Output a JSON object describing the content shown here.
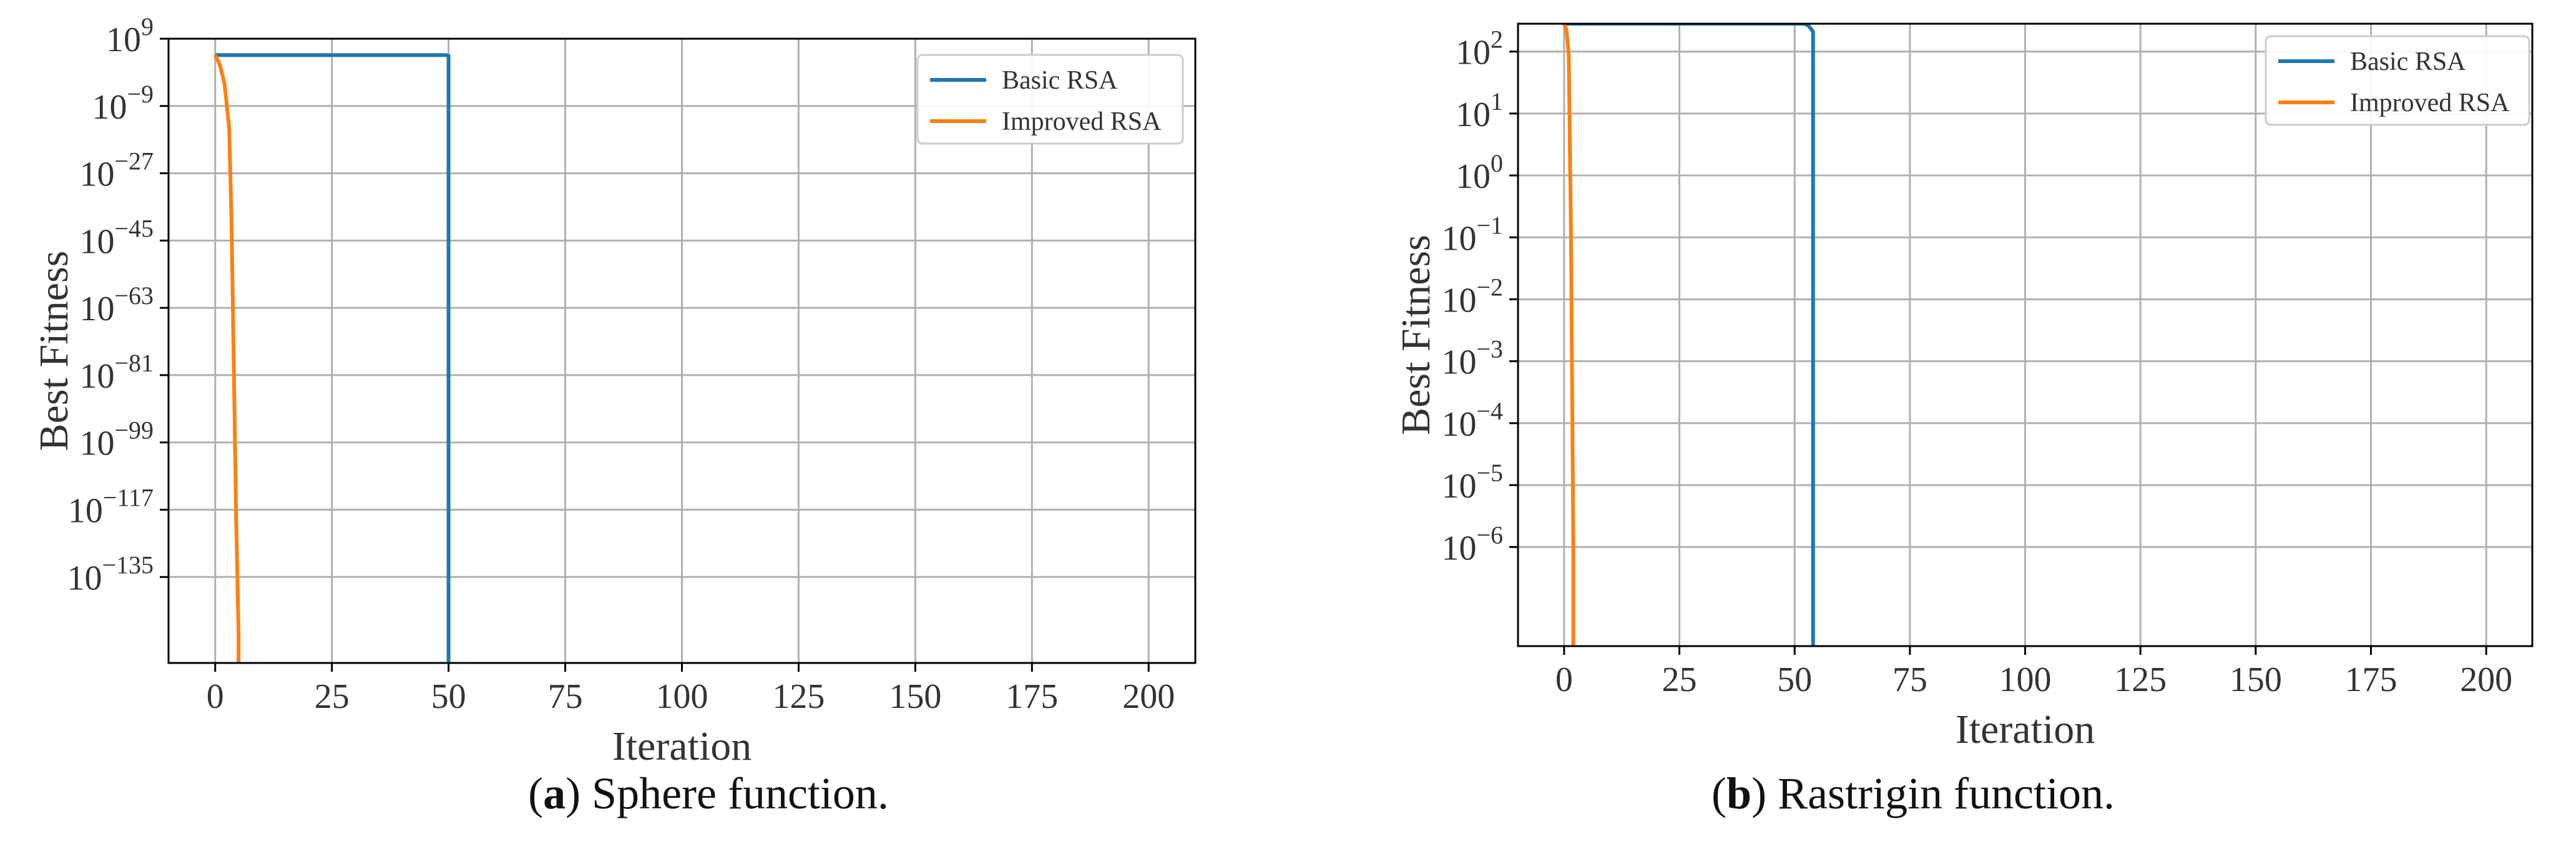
{
  "colors": {
    "basic": "#1f77b4",
    "improved": "#ff7f0e",
    "grid": "#b0b0b0"
  },
  "chart_data": [
    {
      "type": "line",
      "panel_letter": "a",
      "caption_text": ") Sphere function.",
      "xlabel": "Iteration",
      "ylabel": "Best Fitness",
      "yscale": "log",
      "xlim": [
        -10,
        210
      ],
      "ylim_exp": [
        -158,
        9
      ],
      "xticks": [
        0,
        25,
        50,
        75,
        100,
        125,
        150,
        175,
        200
      ],
      "yticks": [
        {
          "base": "10",
          "exp": "9",
          "value": 9
        },
        {
          "base": "10",
          "exp": "−9",
          "value": -9
        },
        {
          "base": "10",
          "exp": "−27",
          "value": -27
        },
        {
          "base": "10",
          "exp": "−45",
          "value": -45
        },
        {
          "base": "10",
          "exp": "−63",
          "value": -63
        },
        {
          "base": "10",
          "exp": "−81",
          "value": -81
        },
        {
          "base": "10",
          "exp": "−99",
          "value": -99
        },
        {
          "base": "10",
          "exp": "−117",
          "value": -117
        },
        {
          "base": "10",
          "exp": "−135",
          "value": -135
        }
      ],
      "grid": true,
      "legend_position": "top-right",
      "series": [
        {
          "name": "Basic RSA",
          "color": "#1f77b4",
          "x": [
            0,
            1,
            10,
            30,
            49.5,
            50,
            50
          ],
          "y_log10": [
            4.6,
            4.6,
            4.6,
            4.6,
            4.6,
            4.4,
            -160
          ]
        },
        {
          "name": "Improved RSA",
          "color": "#ff7f0e",
          "x": [
            0,
            1,
            2,
            3,
            3.5,
            4,
            4.5,
            5,
            5
          ],
          "y_log10": [
            4.6,
            2,
            -3,
            -15,
            -40,
            -80,
            -120,
            -150,
            -160
          ]
        }
      ]
    },
    {
      "type": "line",
      "panel_letter": "b",
      "caption_text": ") Rastrigin function.",
      "xlabel": "Iteration",
      "ylabel": "Best Fitness",
      "yscale": "log",
      "xlim": [
        -10,
        210
      ],
      "ylim_exp": [
        -7.6,
        2.45
      ],
      "xticks": [
        0,
        25,
        50,
        75,
        100,
        125,
        150,
        175,
        200
      ],
      "yticks": [
        {
          "base": "10",
          "exp": "2",
          "value": 2
        },
        {
          "base": "10",
          "exp": "1",
          "value": 1
        },
        {
          "base": "10",
          "exp": "0",
          "value": 0
        },
        {
          "base": "10",
          "exp": "−1",
          "value": -1
        },
        {
          "base": "10",
          "exp": "−2",
          "value": -2
        },
        {
          "base": "10",
          "exp": "−3",
          "value": -3
        },
        {
          "base": "10",
          "exp": "−4",
          "value": -4
        },
        {
          "base": "10",
          "exp": "−5",
          "value": -5
        },
        {
          "base": "10",
          "exp": "−6",
          "value": -6
        }
      ],
      "grid": true,
      "legend_position": "top-right",
      "series": [
        {
          "name": "Basic RSA",
          "color": "#1f77b4",
          "x": [
            0,
            10,
            30,
            52,
            53,
            54,
            54
          ],
          "y_log10": [
            2.45,
            2.45,
            2.45,
            2.45,
            2.42,
            2.32,
            -7.8
          ]
        },
        {
          "name": "Improved RSA",
          "color": "#ff7f0e",
          "x": [
            0,
            0.5,
            1,
            1.5,
            2,
            2
          ],
          "y_log10": [
            2.45,
            2.35,
            1.95,
            -1,
            -6,
            -7.8
          ]
        }
      ]
    }
  ]
}
